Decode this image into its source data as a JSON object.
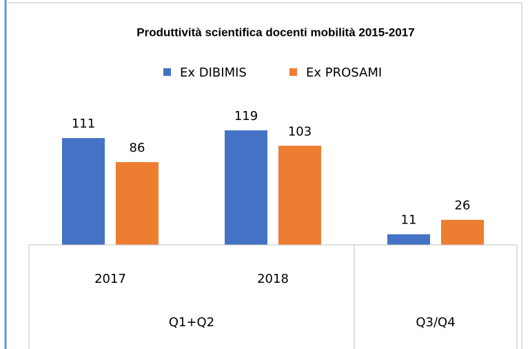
{
  "chart_data": {
    "type": "bar",
    "title": "Produttività scientifica docenti mobilità 2015-2017",
    "categories": [
      "2017",
      "2018",
      null
    ],
    "groups": [
      {
        "label": "Q1+Q2",
        "span": 2
      },
      {
        "label": "Q3/Q4",
        "span": 1
      }
    ],
    "series": [
      {
        "name": "Ex DIBIMIS",
        "color": "#4472c4",
        "values": [
          111,
          119,
          11
        ]
      },
      {
        "name": "Ex PROSAMI",
        "color": "#ed7d31",
        "values": [
          86,
          103,
          26
        ]
      }
    ],
    "legend": "top"
  }
}
